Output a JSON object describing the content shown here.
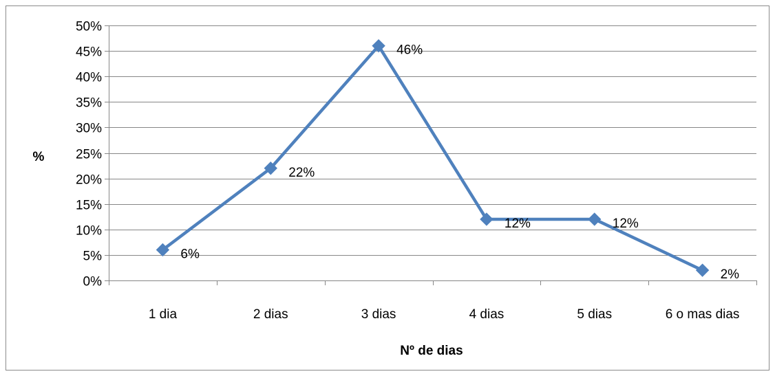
{
  "chart_data": {
    "type": "line",
    "title": "",
    "xlabel": "Nº de dias",
    "ylabel": "%",
    "categories": [
      "1 dia",
      "2 dias",
      "3 dias",
      "4 dias",
      "5 dias",
      "6 o mas dias"
    ],
    "series": [
      {
        "values": [
          6,
          22,
          46,
          12,
          12,
          2
        ],
        "color": "#4F81BD",
        "marker": "diamond"
      }
    ],
    "data_labels": [
      "6%",
      "22%",
      "46%",
      "12%",
      "12%",
      "2%"
    ],
    "y_ticks": [
      0,
      5,
      10,
      15,
      20,
      25,
      30,
      35,
      40,
      45,
      50
    ],
    "y_tick_labels": [
      "0%",
      "5%",
      "10%",
      "15%",
      "20%",
      "25%",
      "30%",
      "35%",
      "40%",
      "45%",
      "50%"
    ],
    "ylim": [
      0,
      50
    ],
    "grid": true,
    "legend": "none",
    "gridline_color": "#868686",
    "axis_color": "#868686"
  }
}
